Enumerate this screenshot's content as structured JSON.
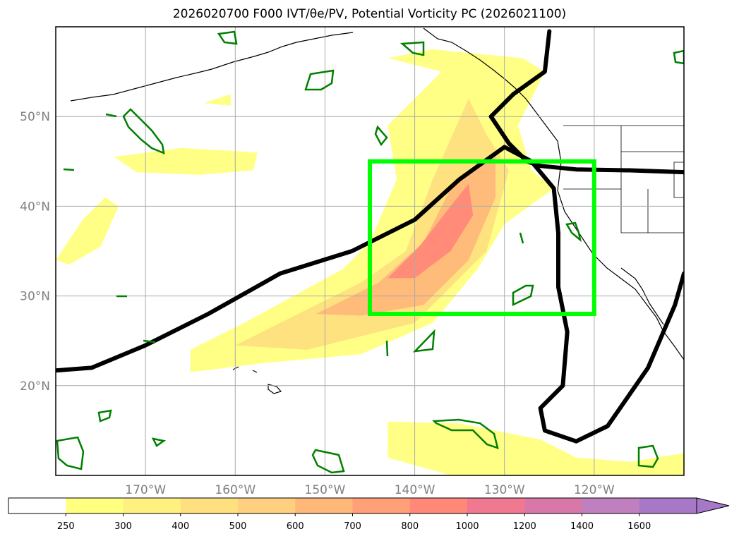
{
  "chart_data": {
    "type": "map-contour",
    "title": "2026020700 F000 IVT/θe/PV, Potential Vorticity PC (2026021100)",
    "lon_range": [
      -180,
      -110
    ],
    "lat_range": [
      10,
      60
    ],
    "grid_lons": [
      -170,
      -160,
      -150,
      -140,
      -130,
      -120
    ],
    "grid_lats": [
      20,
      30,
      40,
      50
    ],
    "lon_labels": [
      "170°W",
      "160°W",
      "150°W",
      "140°W",
      "130°W",
      "120°W"
    ],
    "lat_labels": [
      "20°N",
      "30°N",
      "40°N",
      "50°N"
    ],
    "colorbar": {
      "levels": [
        250,
        300,
        400,
        500,
        600,
        700,
        800,
        1000,
        1200,
        1400,
        1600
      ],
      "labels": [
        "250",
        "300",
        "400",
        "500",
        "600",
        "700",
        "800",
        "1000",
        "1200",
        "1400",
        "1600"
      ],
      "colors": [
        "#ffffff",
        "#ffff80",
        "#fff080",
        "#ffe080",
        "#ffd080",
        "#ffb878",
        "#ffa078",
        "#ff8878",
        "#f07890",
        "#d878a8",
        "#c080c0",
        "#a878c8"
      ],
      "extend": "max"
    },
    "highlight_box": {
      "lon_min": -145,
      "lon_max": -120,
      "lat_min": 28,
      "lat_max": 45,
      "color": "#00ff00"
    },
    "pv_contour_lines": [
      {
        "name": "jet-contour",
        "points": [
          [
            -180,
            21.7
          ],
          [
            -176,
            22
          ],
          [
            -170,
            24.5
          ],
          [
            -163,
            28
          ],
          [
            -155,
            32.5
          ],
          [
            -147,
            35
          ],
          [
            -140,
            38.5
          ],
          [
            -135,
            43
          ],
          [
            -130,
            46.6
          ],
          [
            -127,
            45
          ],
          [
            -124.5,
            42
          ],
          [
            -124,
            37
          ],
          [
            -124,
            31
          ],
          [
            -123,
            26
          ],
          [
            -123.5,
            20
          ],
          [
            -126,
            17.5
          ],
          [
            -125.5,
            15
          ],
          [
            -122,
            13.8
          ],
          [
            -118.5,
            15.5
          ],
          [
            -114,
            22
          ],
          [
            -111,
            29
          ],
          [
            -110,
            32.5
          ]
        ]
      },
      {
        "name": "northern-contour",
        "points": [
          [
            -125,
            59.5
          ],
          [
            -125.5,
            55
          ],
          [
            -129,
            52.5
          ],
          [
            -131.5,
            50
          ],
          [
            -129.5,
            47
          ],
          [
            -127.5,
            45
          ],
          [
            -126,
            44.5
          ],
          [
            -122,
            44.1
          ],
          [
            -116,
            44
          ],
          [
            -110,
            43.8
          ]
        ]
      }
    ],
    "ivt_plumes": [
      {
        "level": 250,
        "points": [
          [
            -173.5,
            45.5
          ],
          [
            -166,
            46.5
          ],
          [
            -157.5,
            46
          ],
          [
            -158,
            44
          ],
          [
            -164,
            43.5
          ],
          [
            -171,
            43.8
          ]
        ]
      },
      {
        "level": 250,
        "points": [
          [
            -163.5,
            51.5
          ],
          [
            -160.5,
            52.5
          ],
          [
            -160.5,
            51.2
          ]
        ]
      },
      {
        "level": 250,
        "points": [
          [
            -180,
            34
          ],
          [
            -177,
            38.5
          ],
          [
            -174.5,
            41
          ],
          [
            -173,
            40
          ],
          [
            -175,
            35.5
          ],
          [
            -178.5,
            33.5
          ]
        ]
      },
      {
        "level": 250,
        "points": [
          [
            -165,
            24
          ],
          [
            -159,
            27
          ],
          [
            -148,
            33
          ],
          [
            -145,
            36
          ],
          [
            -142,
            43
          ],
          [
            -143,
            49
          ],
          [
            -137,
            55
          ],
          [
            -143,
            56.5
          ],
          [
            -138,
            57.5
          ],
          [
            -128,
            56.5
          ],
          [
            -125.5,
            55
          ],
          [
            -128.5,
            49
          ],
          [
            -127,
            44
          ],
          [
            -124.5,
            42
          ],
          [
            -130,
            38
          ],
          [
            -133,
            33
          ],
          [
            -138,
            27
          ],
          [
            -146,
            23.5
          ],
          [
            -157,
            22.5
          ],
          [
            -165,
            21.5
          ]
        ]
      },
      {
        "level": 250,
        "points": [
          [
            -143,
            16
          ],
          [
            -135,
            15.8
          ],
          [
            -126,
            14
          ],
          [
            -122,
            12
          ],
          [
            -116,
            11.5
          ],
          [
            -110,
            12.5
          ],
          [
            -110,
            10
          ],
          [
            -136,
            10
          ],
          [
            -143,
            12
          ]
        ]
      },
      {
        "level": 400,
        "points": [
          [
            -160,
            24.5
          ],
          [
            -154,
            27.5
          ],
          [
            -146,
            31.5
          ],
          [
            -141,
            35
          ],
          [
            -138,
            43
          ],
          [
            -134,
            52
          ],
          [
            -132,
            48
          ],
          [
            -129.5,
            44
          ],
          [
            -132,
            35
          ],
          [
            -140,
            27
          ],
          [
            -152,
            24
          ]
        ]
      },
      {
        "level": 600,
        "points": [
          [
            -151,
            28
          ],
          [
            -144,
            31.5
          ],
          [
            -139,
            36
          ],
          [
            -135.5,
            43
          ],
          [
            -131,
            45.5
          ],
          [
            -131,
            41
          ],
          [
            -134,
            34
          ],
          [
            -139,
            29
          ],
          [
            -146,
            27.8
          ]
        ]
      },
      {
        "level": 800,
        "points": [
          [
            -143,
            32
          ],
          [
            -139.5,
            35.5
          ],
          [
            -136,
            40
          ],
          [
            -134,
            42.5
          ],
          [
            -133.5,
            39
          ],
          [
            -136,
            35
          ],
          [
            -140,
            32
          ]
        ]
      }
    ]
  }
}
